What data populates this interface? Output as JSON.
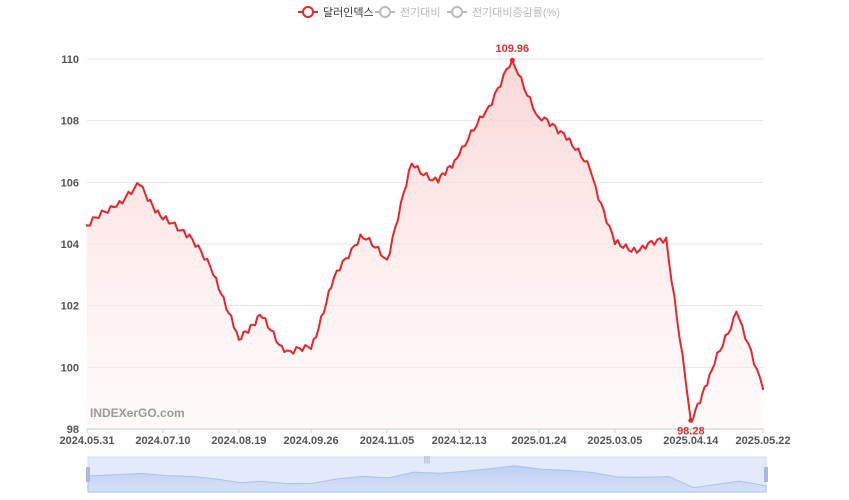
{
  "legend": [
    {
      "label": "달러인덱스",
      "active": true
    },
    {
      "label": "전기대비",
      "active": false
    },
    {
      "label": "전기대비증감률(%)",
      "active": false
    }
  ],
  "watermark": "INDEXerGO.com",
  "colors": {
    "series": "#e8262b",
    "area": "#fde4e4",
    "grid": "#e6e6e6",
    "inactive": "#bbbbbb",
    "slider_fill": "#c9d6f3",
    "slider_line": "#9fb4e8"
  },
  "chart_data": {
    "type": "area",
    "series": [
      {
        "name": "달러인덱스",
        "x": [
          "2024.05.31",
          "2024.06.14",
          "2024.06.28",
          "2024.07.10",
          "2024.07.24",
          "2024.08.07",
          "2024.08.19",
          "2024.08.30",
          "2024.09.12",
          "2024.09.26",
          "2024.10.08",
          "2024.10.22",
          "2024.11.05",
          "2024.11.18",
          "2024.12.02",
          "2024.12.13",
          "2024.12.27",
          "2025.01.10",
          "2025.01.24",
          "2025.02.06",
          "2025.02.20",
          "2025.03.05",
          "2025.03.18",
          "2025.04.01",
          "2025.04.14",
          "2025.04.25",
          "2025.05.08",
          "2025.05.22"
        ],
        "values": [
          104.6,
          105.2,
          105.9,
          104.8,
          104.3,
          102.9,
          100.9,
          101.7,
          100.5,
          100.6,
          102.9,
          104.3,
          103.5,
          106.6,
          106.0,
          106.9,
          108.3,
          109.96,
          108.1,
          107.6,
          106.4,
          104.0,
          103.8,
          104.2,
          98.28,
          99.9,
          101.8,
          99.3
        ]
      }
    ],
    "xlabel": "",
    "ylabel": "",
    "ylim": [
      98,
      110
    ],
    "yticks": [
      "98",
      "100",
      "102",
      "104",
      "106",
      "108",
      "110"
    ],
    "xticks": [
      "2024.05.31",
      "2024.07.10",
      "2024.08.19",
      "2024.09.26",
      "2024.11.05",
      "2024.12.13",
      "2025.01.24",
      "2025.03.05",
      "2025.04.14",
      "2025.05.22"
    ],
    "annotations": [
      {
        "label": "109.96",
        "x": "2025.01.10",
        "y": 109.96,
        "kind": "max"
      },
      {
        "label": "98.28",
        "x": "2025.04.14",
        "y": 98.28,
        "kind": "min"
      }
    ],
    "grid": true,
    "legend_position": "top-center"
  }
}
